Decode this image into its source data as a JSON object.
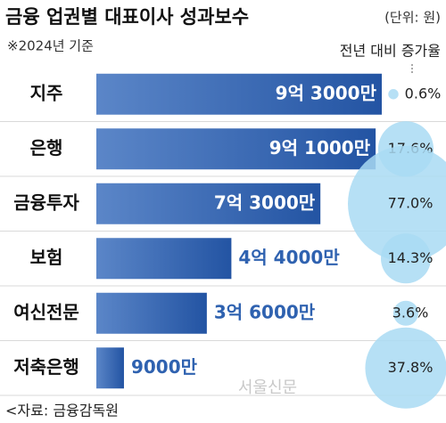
{
  "chart_data": {
    "type": "bar",
    "orientation": "horizontal",
    "title": "금융 업권별 대표이사 성과보수",
    "unit": "(단위: 원)",
    "note": "※2024년 기준",
    "categories": [
      "지주",
      "은행",
      "금융투자",
      "보험",
      "여신전문",
      "저축은행"
    ],
    "values": [
      93000,
      91000,
      73000,
      44000,
      36000,
      9000
    ],
    "value_labels": [
      "9억 3000만",
      "9억 1000만",
      "7억 3000만",
      "4억 4000만",
      "3억 6000만",
      "9000만"
    ],
    "color": "#2f62b0",
    "growth": {
      "title": "전년 대비 증가율",
      "color": "#a9dbf3",
      "values": [
        0.6,
        17.6,
        77.0,
        14.3,
        3.6,
        37.8
      ],
      "value_labels": [
        "0.6%",
        "17.6%",
        "77.0%",
        "14.3%",
        "3.6%",
        "37.8%"
      ]
    },
    "source": "<자료: 금융감독원",
    "watermark": "서울신문"
  }
}
